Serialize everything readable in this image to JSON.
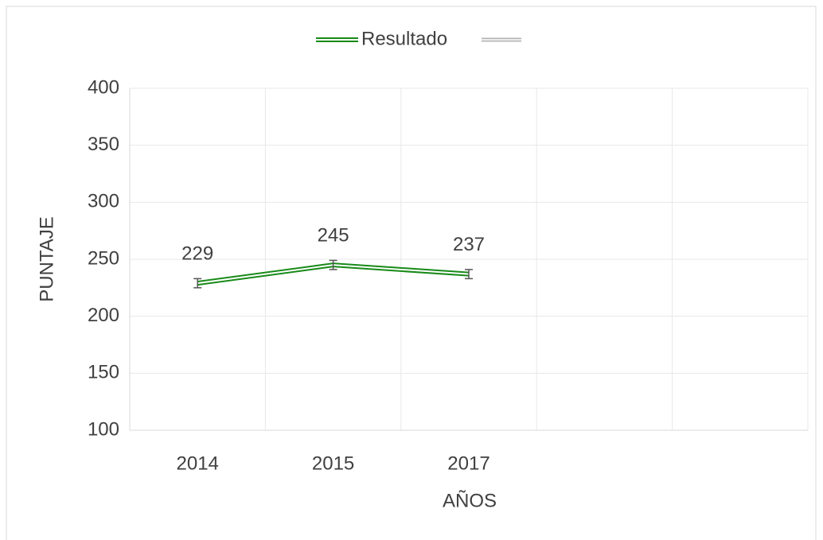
{
  "chart_data": {
    "type": "line",
    "categories": [
      "2014",
      "2015",
      "2017",
      null,
      null
    ],
    "series": [
      {
        "name": "Resultado",
        "color": "#178a17",
        "values": [
          229,
          245,
          237,
          null,
          null
        ],
        "errors": [
          4,
          4,
          4,
          null,
          null
        ]
      }
    ],
    "x_label": "AÑOS",
    "y_label": "PUNTAJE",
    "ylim": [
      100,
      400
    ],
    "yticks": [
      100,
      150,
      200,
      250,
      300,
      350,
      400
    ],
    "grid": true,
    "legend": "top",
    "show_value_labels": true
  }
}
